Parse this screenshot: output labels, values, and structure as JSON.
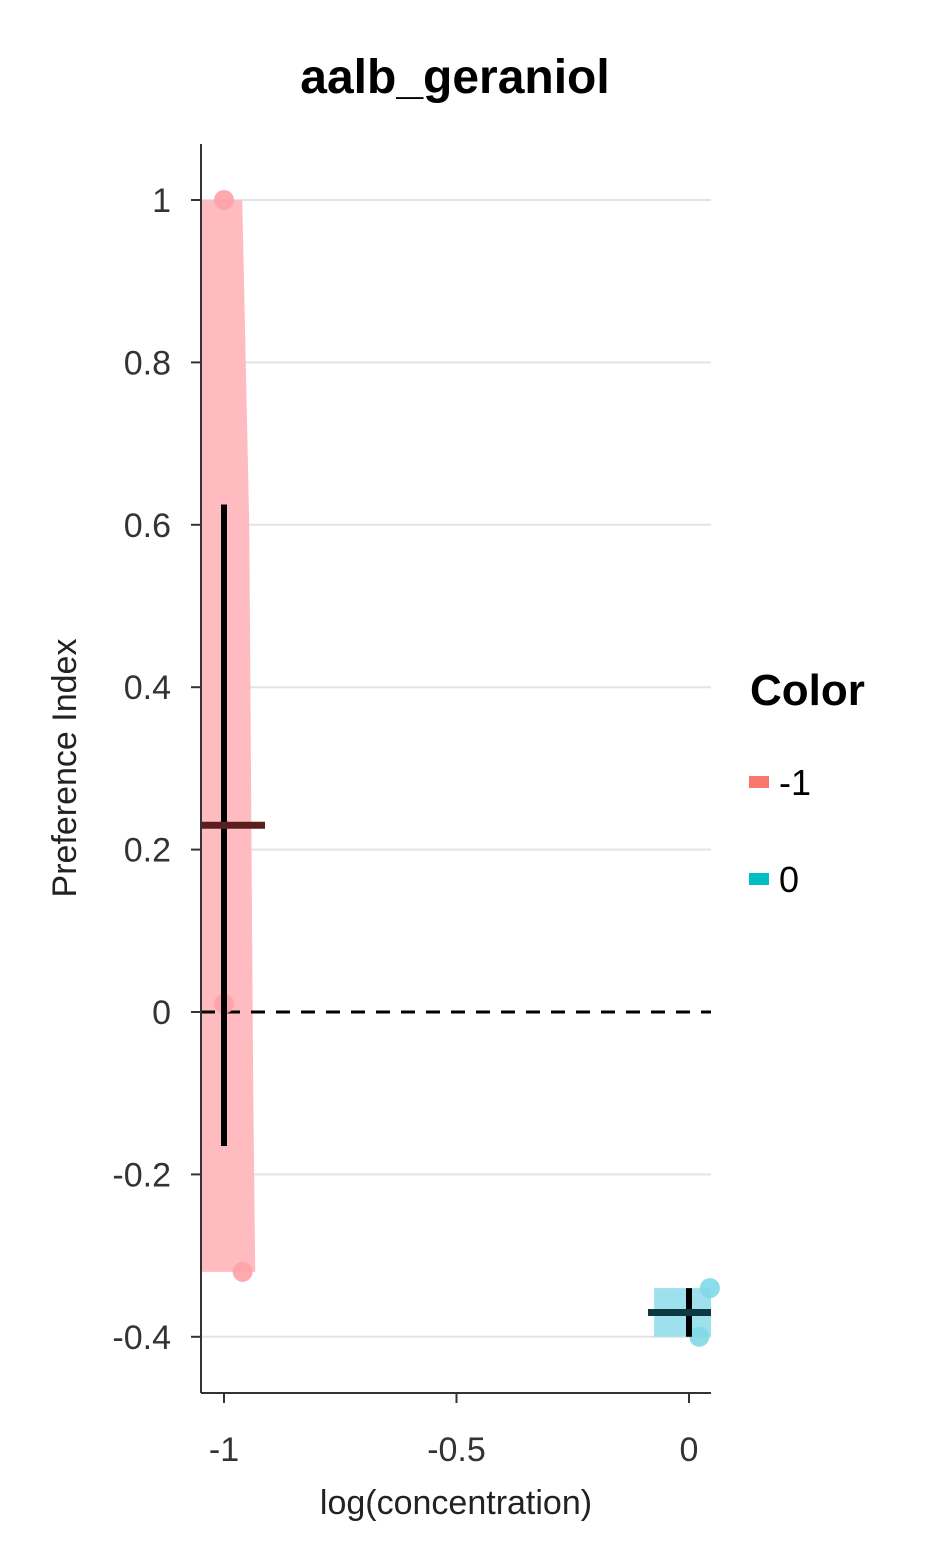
{
  "chart_data": {
    "type": "scatter",
    "title": "aalb_geraniol",
    "xlabel": "log(concentration)",
    "ylabel": "Preference Index",
    "xlim": [
      -1.05,
      0.05
    ],
    "ylim": [
      -0.47,
      1.07
    ],
    "x_ticks": [
      -1,
      -0.5,
      0
    ],
    "x_tick_labels": [
      "-1",
      "-0.5",
      "0"
    ],
    "y_ticks": [
      -0.4,
      -0.2,
      0,
      0.2,
      0.4,
      0.6,
      0.8,
      1
    ],
    "y_tick_labels": [
      "-0.4",
      "-0.2",
      "0",
      "0.2",
      "0.4",
      "0.6",
      "0.8",
      "1"
    ],
    "grid": "horizontal",
    "reference_line": {
      "y": 0,
      "style": "dashed"
    },
    "legend": {
      "title": "Color",
      "position": "right",
      "entries": [
        {
          "label": "-1",
          "color": "#f8766d"
        },
        {
          "label": "0",
          "color": "#00bfc4"
        }
      ]
    },
    "series": [
      {
        "name": "-1",
        "color": "#f8766d",
        "points": [
          {
            "x": -1.0,
            "y": 1.0
          },
          {
            "x": -1.0,
            "y": 0.01
          },
          {
            "x": -0.96,
            "y": -0.32
          }
        ],
        "mean": 0.23,
        "interval": [
          -0.165,
          0.625
        ],
        "band": {
          "x": [
            -1.05,
            -0.95
          ],
          "y": [
            -0.32,
            1.0
          ]
        }
      },
      {
        "name": "0",
        "color": "#00bfc4",
        "points": [
          {
            "x": 0.045,
            "y": -0.34
          },
          {
            "x": 0.022,
            "y": -0.4
          }
        ],
        "mean": -0.37,
        "interval": [
          -0.4,
          -0.34
        ],
        "band": {
          "x": [
            -0.075,
            0.05
          ],
          "y": [
            -0.4,
            -0.34
          ]
        }
      }
    ]
  }
}
